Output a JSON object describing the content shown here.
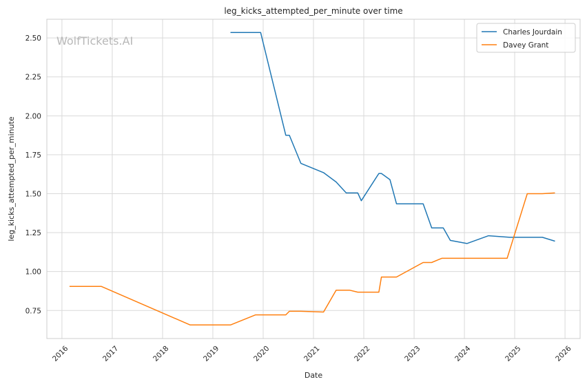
{
  "chart_data": {
    "type": "line",
    "title": "leg_kicks_attempted_per_minute over time",
    "xlabel": "Date",
    "ylabel": "leg_kicks_attempted_per_minute",
    "watermark": "WolfTickets.AI",
    "x_ticks": [
      "2016",
      "2017",
      "2018",
      "2019",
      "2020",
      "2021",
      "2022",
      "2023",
      "2024",
      "2025",
      "2026"
    ],
    "y_ticks": [
      "0.75",
      "1.00",
      "1.25",
      "1.50",
      "1.75",
      "2.00",
      "2.25",
      "2.50"
    ],
    "xlim": [
      2015.7,
      2026.3
    ],
    "ylim": [
      0.57,
      2.62
    ],
    "grid": true,
    "legend_position": "top-right",
    "series": [
      {
        "name": "Charles Jourdain",
        "color": "#1f77b4",
        "x": [
          2019.35,
          2019.95,
          2020.45,
          2020.52,
          2020.75,
          2021.2,
          2021.45,
          2021.65,
          2021.88,
          2021.95,
          2022.3,
          2022.35,
          2022.52,
          2022.65,
          2023.18,
          2023.35,
          2023.58,
          2023.72,
          2024.05,
          2024.48,
          2024.9,
          2025.55,
          2025.8
        ],
        "y": [
          2.535,
          2.535,
          1.875,
          1.875,
          1.695,
          1.635,
          1.575,
          1.505,
          1.505,
          1.455,
          1.63,
          1.63,
          1.59,
          1.435,
          1.435,
          1.28,
          1.28,
          1.2,
          1.18,
          1.23,
          1.22,
          1.22,
          1.195
        ]
      },
      {
        "name": "Davey Grant",
        "color": "#ff7f0e",
        "x": [
          2016.15,
          2016.78,
          2018.55,
          2019.35,
          2019.85,
          2020.45,
          2020.52,
          2020.75,
          2021.2,
          2021.45,
          2021.72,
          2021.88,
          2022.3,
          2022.35,
          2022.65,
          2023.18,
          2023.35,
          2023.55,
          2024.85,
          2025.25,
          2025.55,
          2025.8
        ],
        "y": [
          0.905,
          0.905,
          0.657,
          0.657,
          0.722,
          0.722,
          0.745,
          0.745,
          0.74,
          0.88,
          0.88,
          0.868,
          0.868,
          0.965,
          0.965,
          1.058,
          1.058,
          1.085,
          1.085,
          1.5,
          1.5,
          1.505
        ]
      }
    ]
  }
}
